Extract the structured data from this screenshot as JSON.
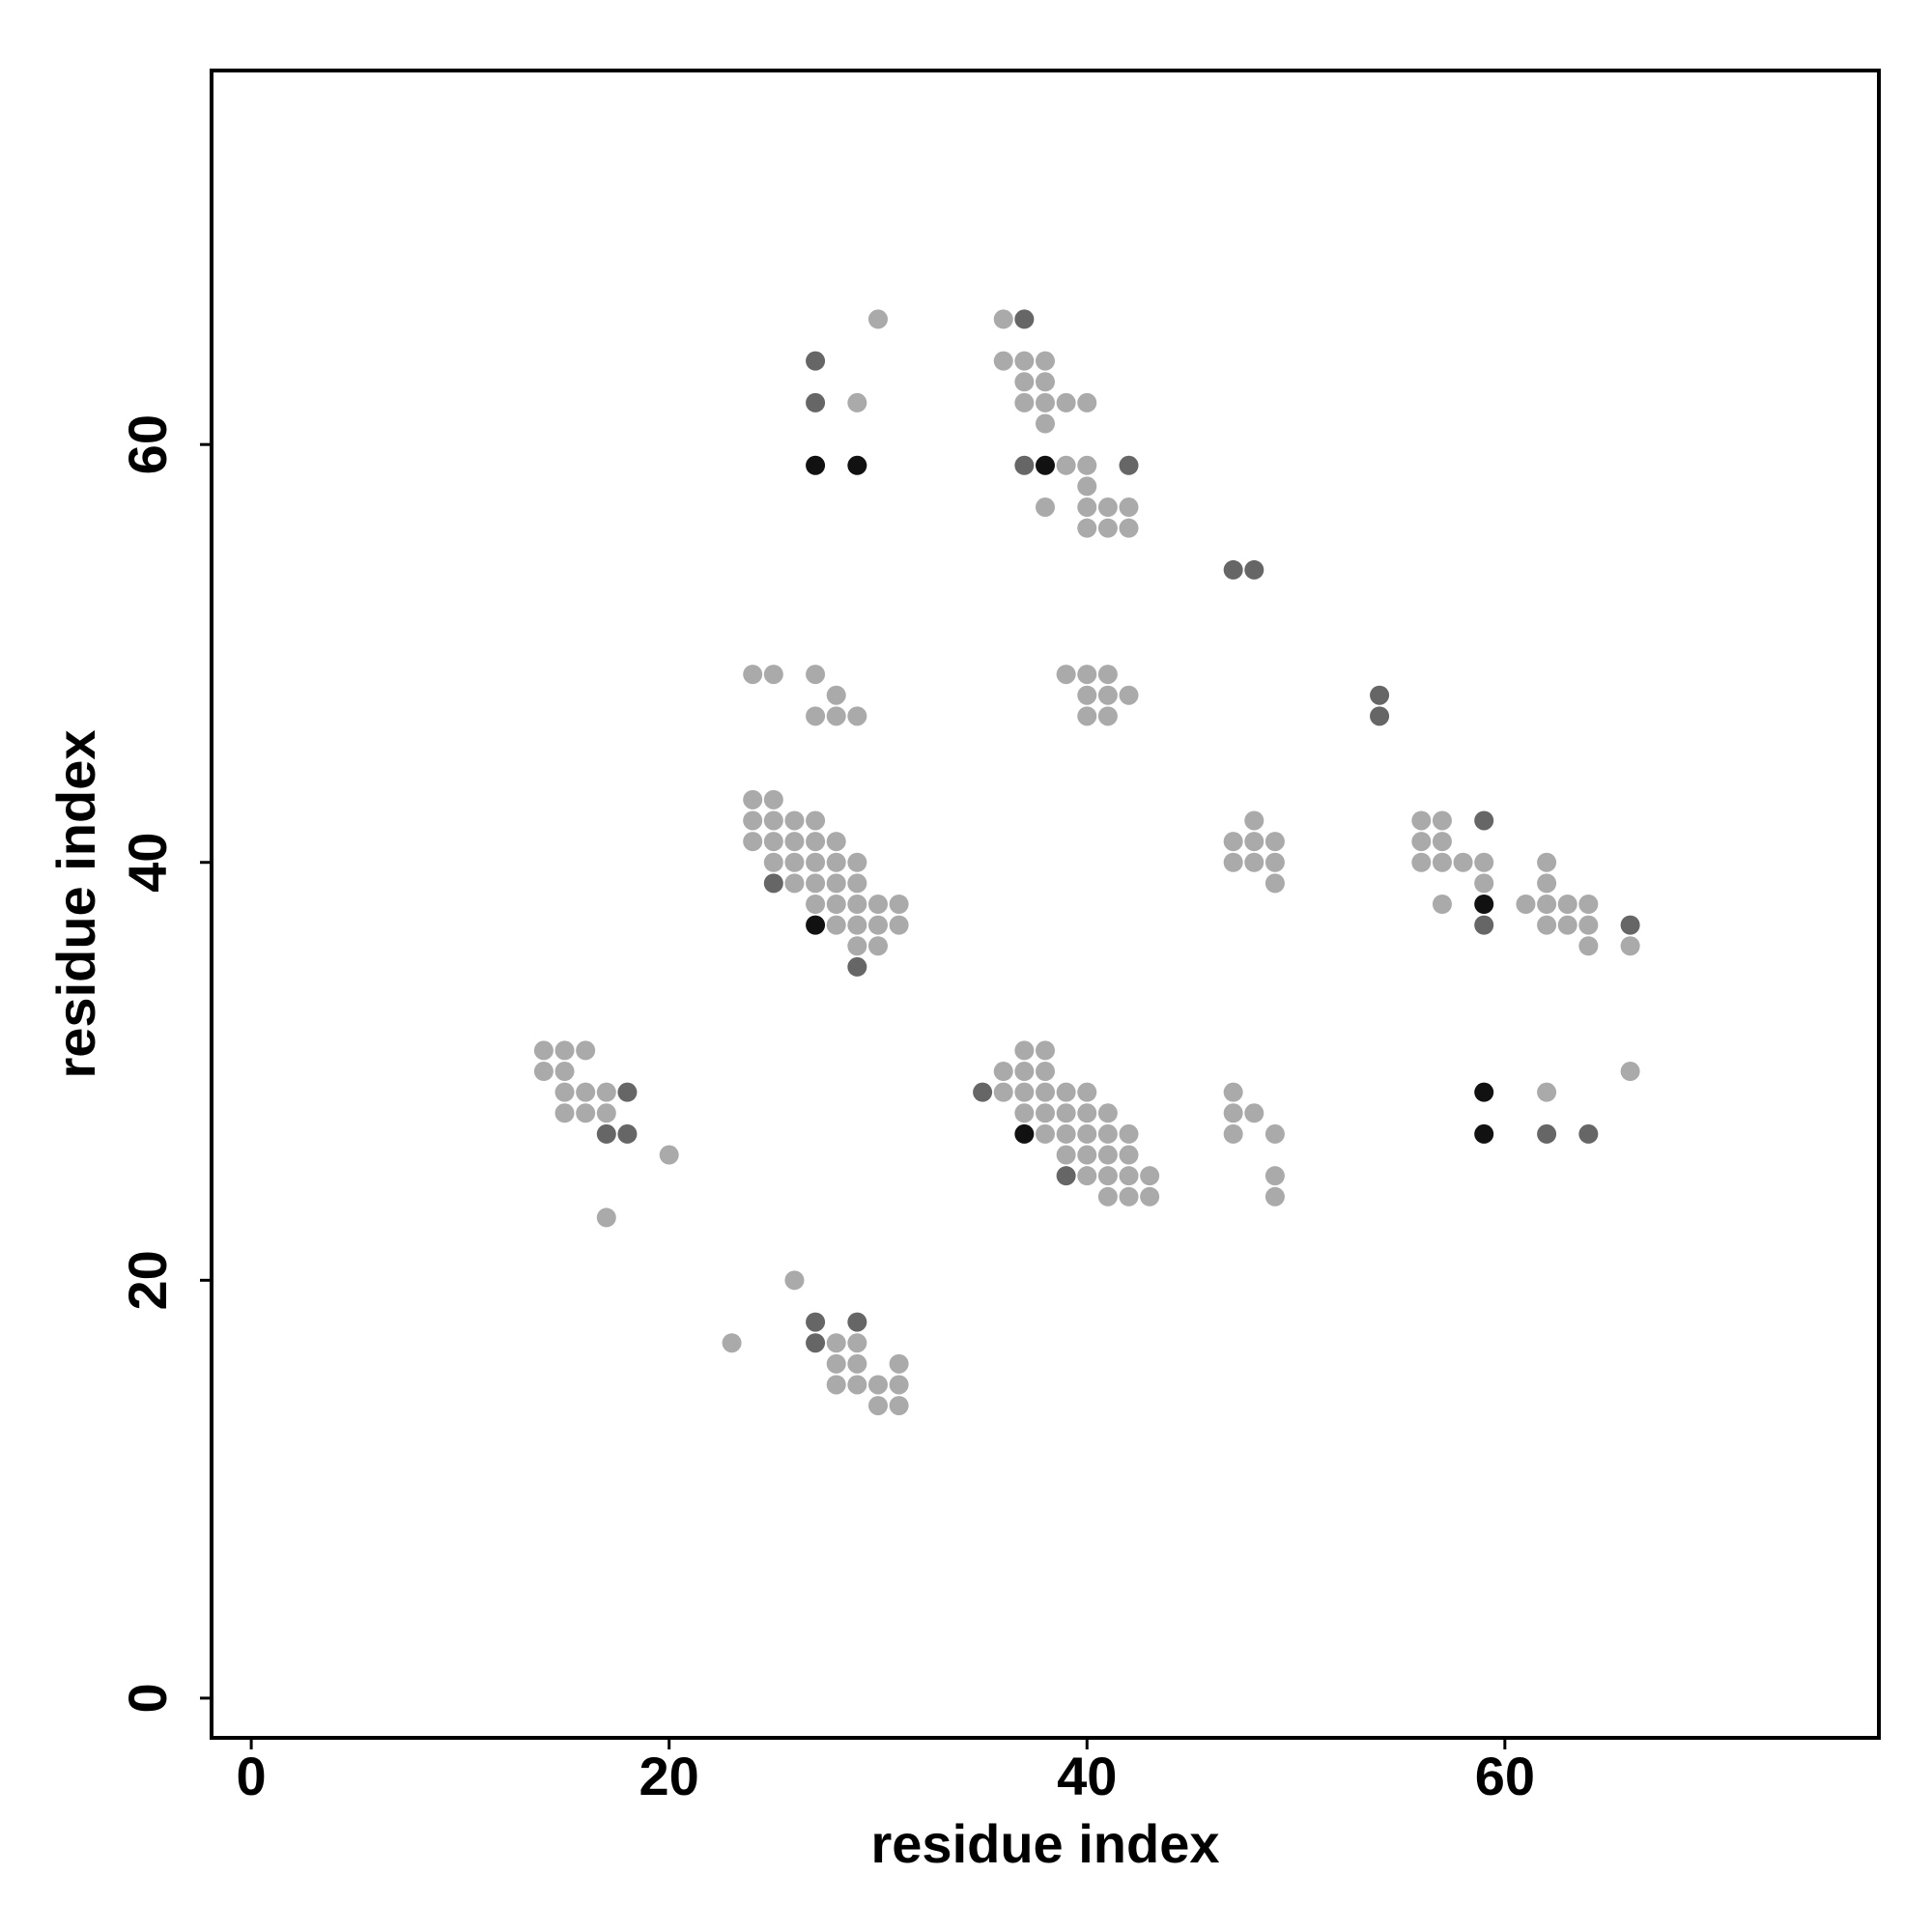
{
  "chart_data": {
    "type": "scatter",
    "x_label": "residue index",
    "y_label": "residue index",
    "xlim": [
      -1.9,
      77.9
    ],
    "ylim": [
      -1.9,
      77.9
    ],
    "xticks": [
      0,
      20,
      40,
      60
    ],
    "yticks": [
      0,
      20,
      40,
      60
    ],
    "series": [
      {
        "color": "#aaaaaa",
        "x": [
          30,
          36,
          36,
          37,
          38,
          37,
          38,
          29,
          37,
          38,
          39,
          40,
          38,
          39,
          40,
          40,
          38,
          40,
          41,
          42,
          40,
          41,
          42,
          24,
          25,
          27,
          39,
          40,
          41,
          28,
          40,
          41,
          42,
          27,
          28,
          29,
          40,
          41,
          24,
          25,
          24,
          25,
          26,
          27,
          48,
          56,
          57,
          24,
          25,
          26,
          27,
          28,
          47,
          48,
          49,
          56,
          57,
          25,
          26,
          27,
          28,
          29,
          47,
          48,
          49,
          56,
          57,
          58,
          59,
          62,
          26,
          27,
          28,
          29,
          49,
          59,
          62,
          27,
          28,
          29,
          30,
          31,
          57,
          61,
          62,
          63,
          64,
          28,
          29,
          30,
          31,
          62,
          63,
          64,
          29,
          30,
          64,
          66,
          14,
          15,
          16,
          37,
          38,
          14,
          15,
          36,
          37,
          38,
          66,
          15,
          16,
          17,
          36,
          37,
          38,
          39,
          40,
          47,
          62,
          15,
          16,
          17,
          37,
          38,
          39,
          40,
          41,
          47,
          48,
          38,
          39,
          40,
          41,
          42,
          47,
          49,
          20,
          39,
          40,
          41,
          42,
          40,
          41,
          42,
          43,
          49,
          41,
          42,
          43,
          49,
          17,
          26,
          23,
          28,
          29,
          28,
          29,
          31,
          28,
          29,
          30,
          31,
          30,
          31
        ],
        "y": [
          66,
          66,
          64,
          64,
          64,
          63,
          63,
          62,
          62,
          62,
          62,
          62,
          61,
          59,
          59,
          58,
          57,
          57,
          57,
          57,
          56,
          56,
          56,
          49,
          49,
          49,
          49,
          49,
          49,
          48,
          48,
          48,
          48,
          47,
          47,
          47,
          47,
          47,
          43,
          43,
          42,
          42,
          42,
          42,
          42,
          42,
          42,
          41,
          41,
          41,
          41,
          41,
          41,
          41,
          41,
          41,
          41,
          40,
          40,
          40,
          40,
          40,
          40,
          40,
          40,
          40,
          40,
          40,
          40,
          40,
          39,
          39,
          39,
          39,
          39,
          39,
          39,
          38,
          38,
          38,
          38,
          38,
          38,
          38,
          38,
          38,
          38,
          37,
          37,
          37,
          37,
          37,
          37,
          37,
          36,
          36,
          36,
          36,
          31,
          31,
          31,
          31,
          31,
          30,
          30,
          30,
          30,
          30,
          30,
          29,
          29,
          29,
          29,
          29,
          29,
          29,
          29,
          29,
          29,
          28,
          28,
          28,
          28,
          28,
          28,
          28,
          28,
          28,
          28,
          27,
          27,
          27,
          27,
          27,
          27,
          27,
          26,
          26,
          26,
          26,
          26,
          25,
          25,
          25,
          25,
          25,
          24,
          24,
          24,
          24,
          23,
          20,
          17,
          17,
          17,
          16,
          16,
          16,
          15,
          15,
          15,
          15,
          14,
          14
        ]
      },
      {
        "color": "#666666",
        "x": [
          37,
          27,
          27,
          37,
          42,
          47,
          48,
          54,
          54,
          59,
          25,
          59,
          66,
          29,
          18,
          35,
          17,
          18,
          62,
          64,
          39,
          27,
          29,
          27
        ],
        "y": [
          66,
          64,
          62,
          59,
          59,
          54,
          54,
          48,
          47,
          42,
          39,
          37,
          37,
          35,
          29,
          29,
          27,
          27,
          27,
          27,
          25,
          18,
          18,
          17
        ]
      },
      {
        "color": "#111111",
        "x": [
          27,
          29,
          38,
          59,
          27,
          59,
          37,
          59
        ],
        "y": [
          59,
          59,
          59,
          38,
          37,
          29,
          27,
          27
        ]
      }
    ]
  }
}
